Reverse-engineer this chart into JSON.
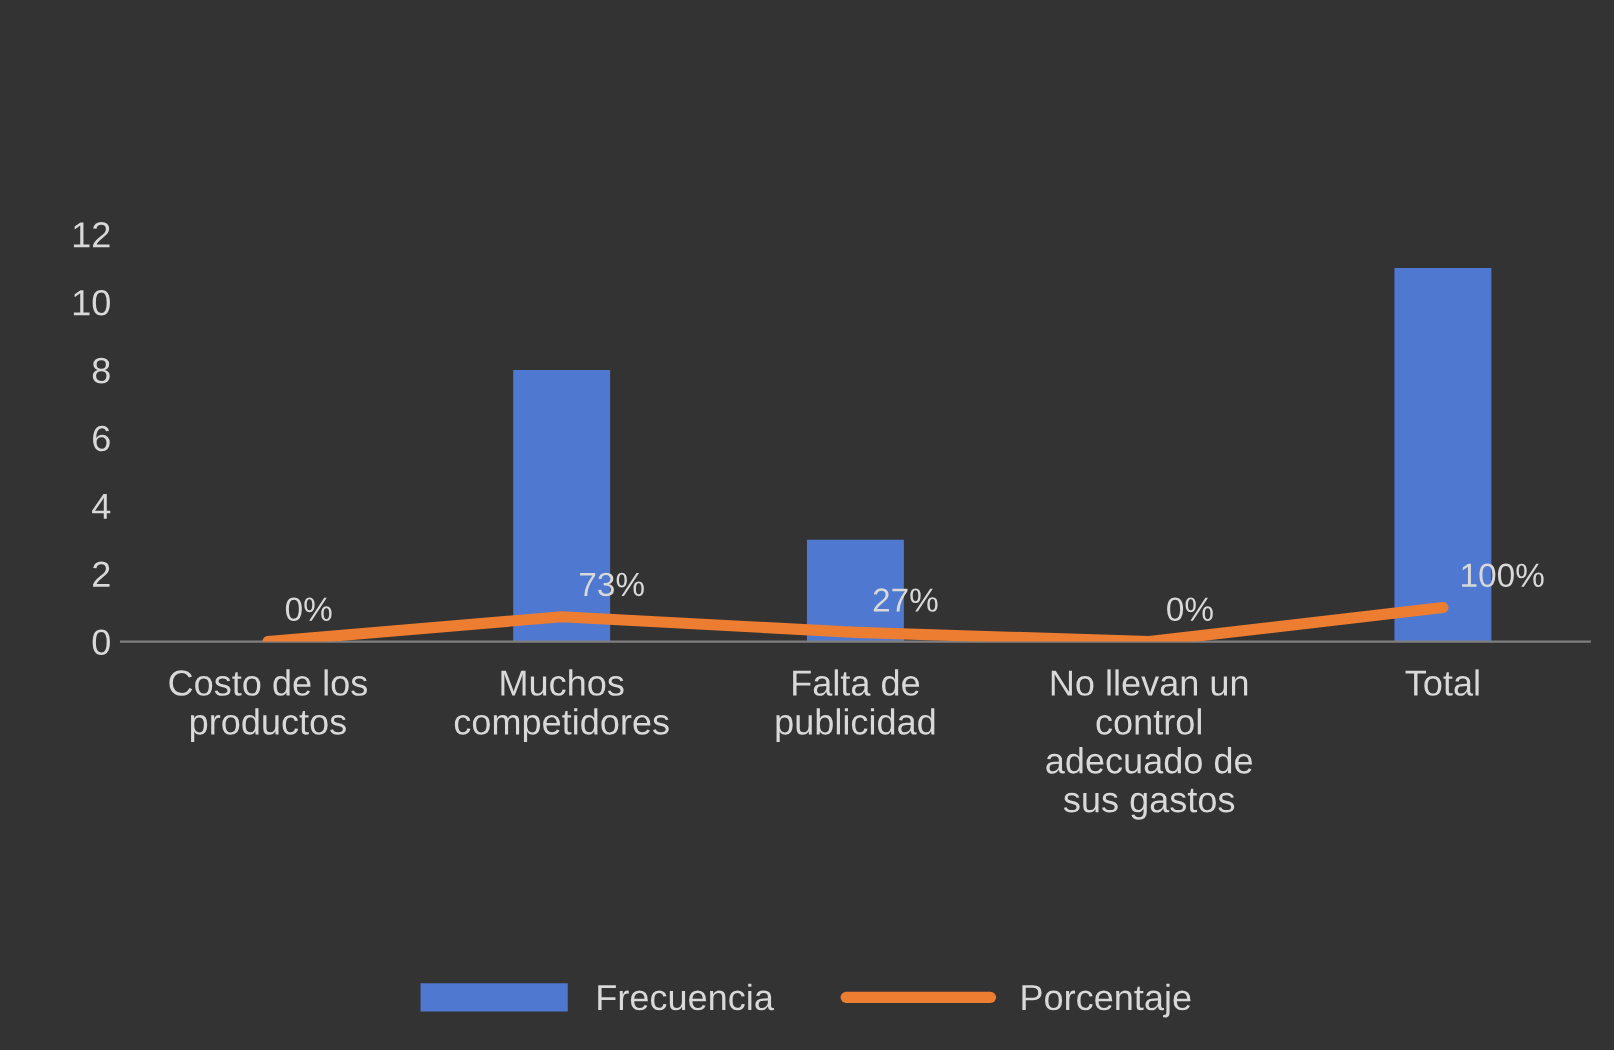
{
  "chart_data": {
    "type": "bar",
    "categories": [
      "Costo de los\nproductos",
      "Muchos\ncompetidores",
      "Falta de\npublicidad",
      "No llevan un\ncontrol\nadecuado de\nsus gastos",
      "Total"
    ],
    "series": [
      {
        "name": "Frecuencia",
        "color": "#4f78d0",
        "values": [
          0,
          8,
          3,
          0,
          11
        ]
      },
      {
        "name": "Porcentaje",
        "type": "line",
        "color": "#ed7d31",
        "values": [
          0,
          0.73,
          0.27,
          0,
          1
        ],
        "value_labels": [
          "0%",
          "73%",
          "27%",
          "0%",
          "100%"
        ]
      }
    ],
    "ylim": [
      0,
      12
    ],
    "yticks": [
      0,
      2,
      4,
      6,
      8,
      10,
      12
    ],
    "grid": false,
    "legend": "bottom",
    "marker": "none",
    "line_style": "solid"
  }
}
